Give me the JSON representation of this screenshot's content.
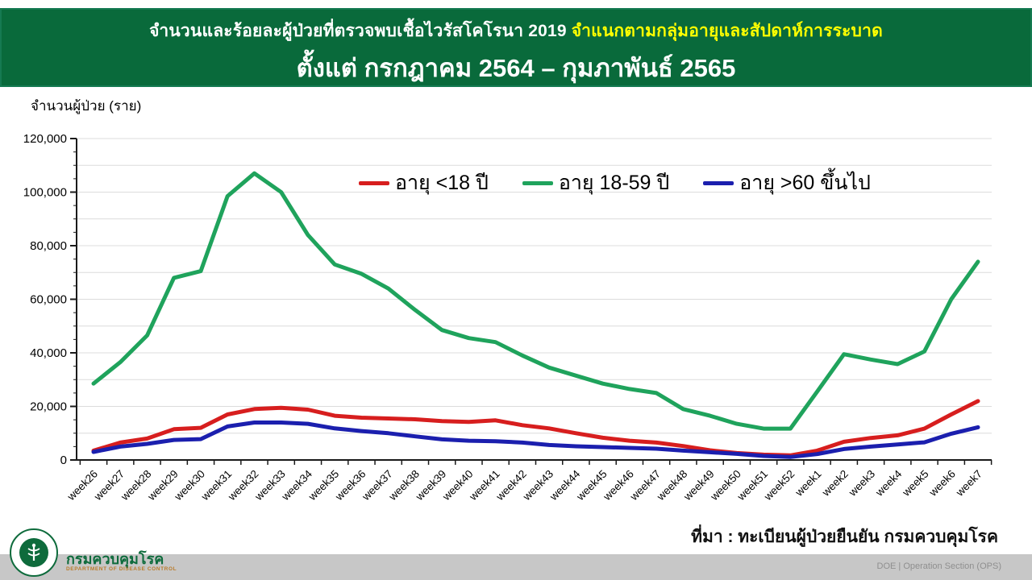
{
  "header": {
    "title_main": "จำนวนและร้อยละผู้ป่วยที่ตรวจพบเชื้อไวรัสโคโรนา 2019",
    "title_highlight": "จำแนกตามกลุ่มอายุและสัปดาห์การระบาด",
    "subtitle": "ตั้งแต่ กรกฎาคม 2564 –  กุมภาพันธ์ 2565"
  },
  "chart_data": {
    "type": "line",
    "title": "",
    "xlabel": "",
    "ylabel": "จำนวนผู้ป่วย (ราย)",
    "ylim": [
      0,
      120000
    ],
    "ytick_interval": 20000,
    "ytick_minor_interval": 5000,
    "gridline_interval": 10000,
    "grid": true,
    "legend_position": "top-center",
    "categories": [
      "week26",
      "week27",
      "week28",
      "week29",
      "week30",
      "week31",
      "week32",
      "week33",
      "week34",
      "week35",
      "week36",
      "week37",
      "week38",
      "week39",
      "week40",
      "week41",
      "week42",
      "week43",
      "week44",
      "week45",
      "week46",
      "week47",
      "week48",
      "week49",
      "week50",
      "week51",
      "week52",
      "week1",
      "week2",
      "week3",
      "week4",
      "week5",
      "week6",
      "week7"
    ],
    "series": [
      {
        "name": "อายุ <18 ปี",
        "color": "#D71E1E",
        "values": [
          3500,
          6500,
          8000,
          11500,
          12000,
          17000,
          19000,
          19500,
          18800,
          16500,
          15800,
          15500,
          15200,
          14500,
          14200,
          14800,
          13000,
          11800,
          10000,
          8300,
          7200,
          6500,
          5200,
          3600,
          2600,
          2000,
          1700,
          3500,
          6800,
          8200,
          9200,
          11700,
          17000,
          22000
        ]
      },
      {
        "name": "อายุ 18-59 ปี",
        "color": "#1FA35C",
        "values": [
          28500,
          36500,
          46500,
          68000,
          70500,
          98500,
          107000,
          100000,
          84000,
          73000,
          69500,
          64000,
          56000,
          48500,
          45500,
          44000,
          39000,
          34500,
          31500,
          28500,
          26500,
          25000,
          19000,
          16500,
          13500,
          11700,
          11700,
          25500,
          39500,
          37500,
          35800,
          40500,
          60000,
          74000
        ]
      },
      {
        "name": "อายุ >60 ขึ้นไป",
        "color": "#1B1FAE",
        "values": [
          3000,
          5000,
          6000,
          7500,
          7800,
          12500,
          14000,
          14000,
          13500,
          11800,
          10800,
          10000,
          8800,
          7700,
          7200,
          7000,
          6500,
          5600,
          5100,
          4800,
          4500,
          4200,
          3500,
          2900,
          2300,
          1500,
          1100,
          2200,
          4100,
          5000,
          5800,
          6600,
          9800,
          12200
        ]
      }
    ]
  },
  "source_note": "ที่มา : ทะเบียนผู้ป่วยยืนยัน กรมควบคุมโรค",
  "footer": {
    "org_name_th": "กรมควบคุมโรค",
    "org_name_en": "DEPARTMENT OF DISEASE CONTROL",
    "right_text": "DOE | Operation Section (OPS)"
  },
  "colors": {
    "header_bg": "#096A3B",
    "title_highlight": "#FFFF00",
    "footer_bar": "#C7C7C7",
    "grid": "#DCDCDC",
    "axis": "#1A1A1A",
    "logo_green": "#0E6B3C",
    "org_en": "#B97B2B"
  }
}
